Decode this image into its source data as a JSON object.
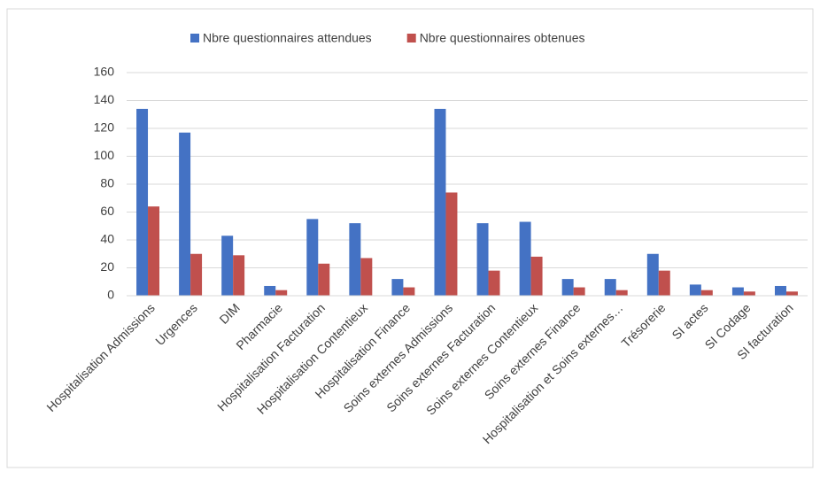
{
  "chart_data": {
    "type": "bar",
    "categories": [
      "Hospitalisation Admissions",
      "Urgences",
      "DIM",
      "Pharmacie",
      "Hospitalisation Facturation",
      "Hospitalisation Contentieux",
      "Hospitalisation Finance",
      "Soins externes Admissions",
      "Soins externes Facturation",
      "Soins externes Contentieux",
      "Soins externes Finance",
      "Hospitalisation et Soins externes…",
      "Trésorerie",
      "SI actes",
      "SI Codage",
      "SI facturation"
    ],
    "series": [
      {
        "name": "Nbre questionnaires attendues",
        "color": "#4472c4",
        "values": [
          134,
          117,
          43,
          7,
          55,
          52,
          12,
          134,
          52,
          53,
          12,
          12,
          30,
          8,
          6,
          7
        ]
      },
      {
        "name": "Nbre questionnaires obtenues",
        "color": "#c0504d",
        "values": [
          64,
          30,
          29,
          4,
          23,
          27,
          6,
          74,
          18,
          28,
          6,
          4,
          18,
          4,
          3,
          3
        ]
      }
    ],
    "ylim": [
      0,
      160
    ],
    "yticks": [
      0,
      20,
      40,
      60,
      80,
      100,
      120,
      140,
      160
    ],
    "grid": true,
    "legend": "top"
  }
}
